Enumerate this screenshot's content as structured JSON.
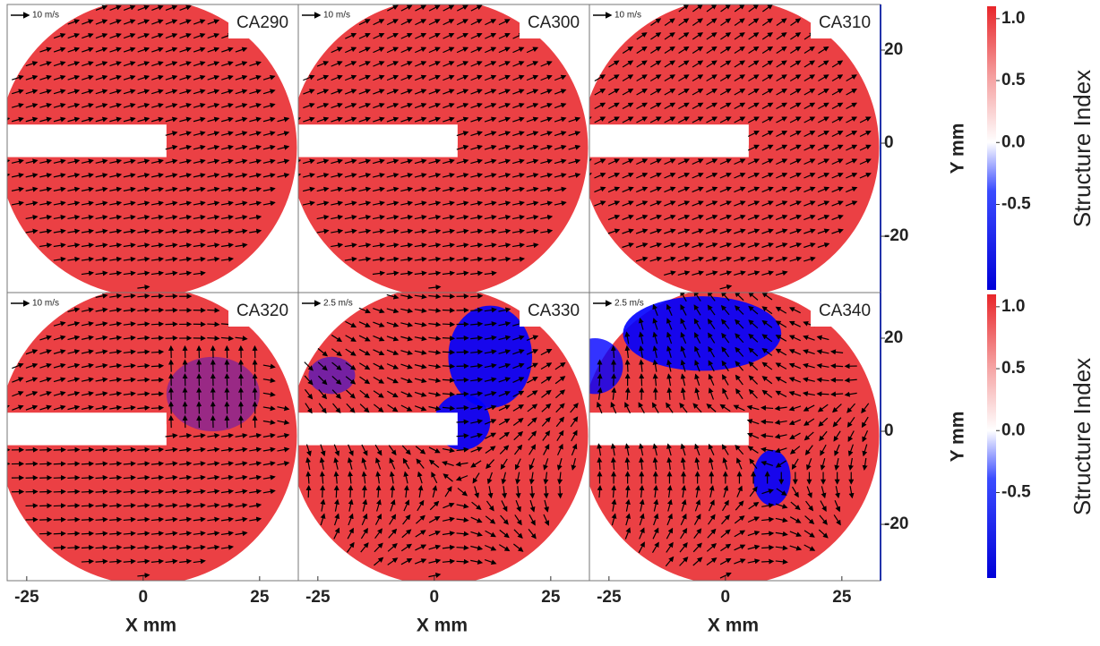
{
  "chart_data": {
    "type": "vector-field-grid",
    "panels": [
      {
        "label": "CA290",
        "scale_label": "10 m/s"
      },
      {
        "label": "CA300",
        "scale_label": "10 m/s"
      },
      {
        "label": "CA310",
        "scale_label": "10 m/s"
      },
      {
        "label": "CA320",
        "scale_label": "10 m/s"
      },
      {
        "label": "CA330",
        "scale_label": "2.5 m/s"
      },
      {
        "label": "CA340",
        "scale_label": "2.5 m/s"
      }
    ],
    "xlabel": "X mm",
    "ylabel": "Y mm",
    "xlim": [
      -29.2,
      33.3
    ],
    "xticks": [
      -25,
      0,
      25
    ],
    "ylim": [
      -32.1,
      29.8
    ],
    "yticks": [
      -20,
      0,
      20
    ],
    "colorbar": {
      "label": "Structure Index",
      "clim": [
        -1.19,
        1.1
      ],
      "colors": [
        "#0000ff",
        "#ffffff",
        "#e8262a"
      ],
      "ticks": [
        {
          "value": 1,
          "label": "1.0"
        },
        0.5,
        {
          "value": 0,
          "label": "0.0"
        },
        -0.5
      ]
    }
  }
}
